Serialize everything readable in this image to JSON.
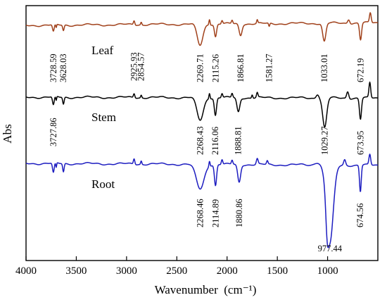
{
  "chart_data": {
    "type": "line",
    "title": "",
    "xlabel": "Wavenumber  (cm⁻¹)",
    "ylabel": "Abs",
    "xlim": [
      4000,
      500
    ],
    "x_reversed": true,
    "x_ticks": [
      4000,
      3500,
      3000,
      2500,
      2000,
      1500,
      1000
    ],
    "x_tick_labels": [
      "4000",
      "3500",
      "3000",
      "2500",
      "2000",
      "1500",
      "1000"
    ],
    "y_ticks": [],
    "grid": false,
    "legend": "inline labels",
    "series": [
      {
        "name": "Leaf",
        "color": "#a0401a",
        "peaks": [
          "3728.59",
          "3628.03",
          "2925.93",
          "2854.57",
          "2269.71",
          "2115.26",
          "1866.81",
          "1581.27",
          "1033.01",
          "672.19"
        ]
      },
      {
        "name": "Stem",
        "color": "#000000",
        "peaks": [
          "3727.86",
          "2268.43",
          "2116.06",
          "1888.81",
          "1029.27",
          "673.95"
        ]
      },
      {
        "name": "Root",
        "color": "#1c1cc0",
        "peaks": [
          "2268.46",
          "2114.89",
          "1880.86",
          "977.44",
          "674.56"
        ]
      }
    ]
  }
}
